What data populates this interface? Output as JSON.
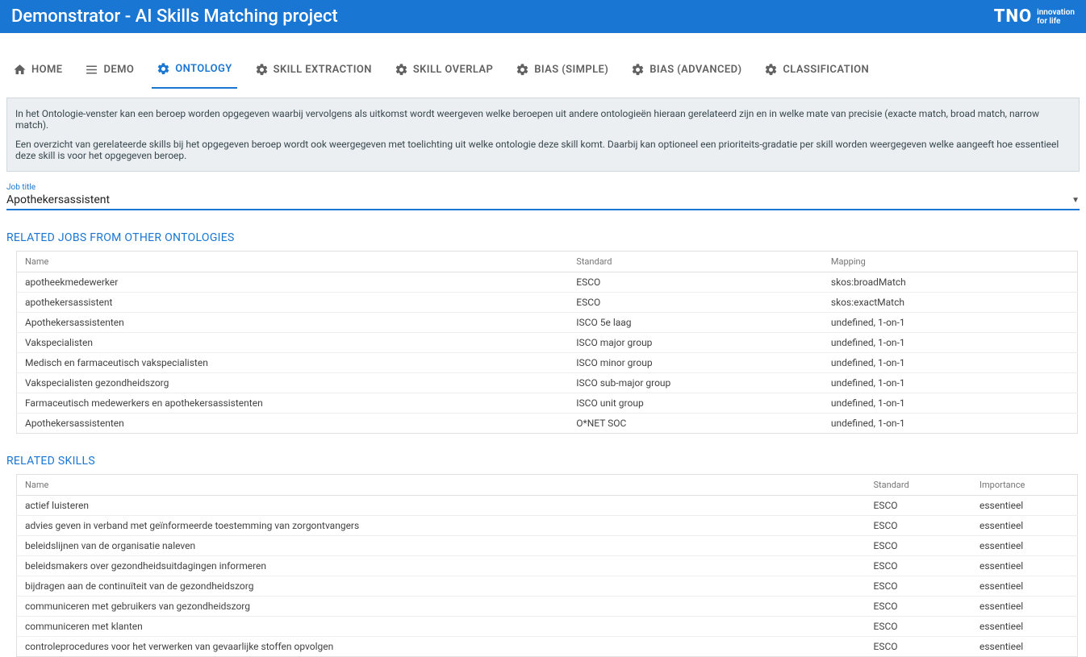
{
  "header": {
    "title": "Demonstrator - AI Skills Matching project",
    "logo_main": "TNO",
    "logo_line1": "innovation",
    "logo_line2": "for life"
  },
  "tabs": [
    {
      "label": "HOME"
    },
    {
      "label": "DEMO"
    },
    {
      "label": "ONTOLOGY"
    },
    {
      "label": "SKILL EXTRACTION"
    },
    {
      "label": "SKILL OVERLAP"
    },
    {
      "label": "BIAS (SIMPLE)"
    },
    {
      "label": "BIAS (ADVANCED)"
    },
    {
      "label": "CLASSIFICATION"
    }
  ],
  "active_tab_index": 2,
  "intro": {
    "p1": "In het Ontologie-venster kan een beroep worden opgegeven waarbij vervolgens als uitkomst wordt weergeven welke beroepen uit andere ontologieën hieraan gerelateerd zijn en in welke mate van precisie (exacte match, broad match, narrow match).",
    "p2": "Een overzicht van gerelateerde skills bij het opgegeven beroep wordt ook weergegeven met toelichting uit welke ontologie deze skill komt. Daarbij kan optioneel een prioriteits-gradatie per skill worden weergegeven welke aangeeft hoe essentieel deze skill is voor het opgegeven beroep."
  },
  "job_field": {
    "label": "Job title",
    "value": "Apothekersassistent"
  },
  "jobs_section": {
    "title": "RELATED JOBS FROM OTHER ONTOLOGIES",
    "columns": {
      "name": "Name",
      "standard": "Standard",
      "mapping": "Mapping"
    },
    "rows": [
      {
        "name": "apotheekmedewerker",
        "standard": "ESCO",
        "mapping": "skos:broadMatch"
      },
      {
        "name": "apothekersassistent",
        "standard": "ESCO",
        "mapping": "skos:exactMatch"
      },
      {
        "name": "Apothekersassistenten",
        "standard": "ISCO 5e laag",
        "mapping": "undefined, 1-on-1"
      },
      {
        "name": "Vakspecialisten",
        "standard": "ISCO major group",
        "mapping": "undefined, 1-on-1"
      },
      {
        "name": "Medisch en farmaceutisch vakspecialisten",
        "standard": "ISCO minor group",
        "mapping": "undefined, 1-on-1"
      },
      {
        "name": "Vakspecialisten gezondheidszorg",
        "standard": "ISCO sub-major group",
        "mapping": "undefined, 1-on-1"
      },
      {
        "name": "Farmaceutisch medewerkers en apothekersassistenten",
        "standard": "ISCO unit group",
        "mapping": "undefined, 1-on-1"
      },
      {
        "name": "Apothekersassistenten",
        "standard": "O*NET SOC",
        "mapping": "undefined, 1-on-1"
      }
    ]
  },
  "skills_section": {
    "title": "RELATED SKILLS",
    "columns": {
      "name": "Name",
      "standard": "Standard",
      "importance": "Importance"
    },
    "rows": [
      {
        "name": "actief luisteren",
        "standard": "ESCO",
        "importance": "essentieel"
      },
      {
        "name": "advies geven in verband met geïnformeerde toestemming van zorgontvangers",
        "standard": "ESCO",
        "importance": "essentieel"
      },
      {
        "name": "beleidslijnen van de organisatie naleven",
        "standard": "ESCO",
        "importance": "essentieel"
      },
      {
        "name": "beleidsmakers over gezondheidsuitdagingen informeren",
        "standard": "ESCO",
        "importance": "essentieel"
      },
      {
        "name": "bijdragen aan de continuïteit van de gezondheidszorg",
        "standard": "ESCO",
        "importance": "essentieel"
      },
      {
        "name": "communiceren met gebruikers van gezondheidszorg",
        "standard": "ESCO",
        "importance": "essentieel"
      },
      {
        "name": "communiceren met klanten",
        "standard": "ESCO",
        "importance": "essentieel"
      },
      {
        "name": "controleprocedures voor het verwerken van gevaarlijke stoffen opvolgen",
        "standard": "ESCO",
        "importance": "essentieel"
      }
    ]
  },
  "colors": {
    "primary": "#1976d2",
    "panel_bg": "#eceff1",
    "border": "#e0e0e0",
    "text": "#212121",
    "muted": "#757575"
  }
}
